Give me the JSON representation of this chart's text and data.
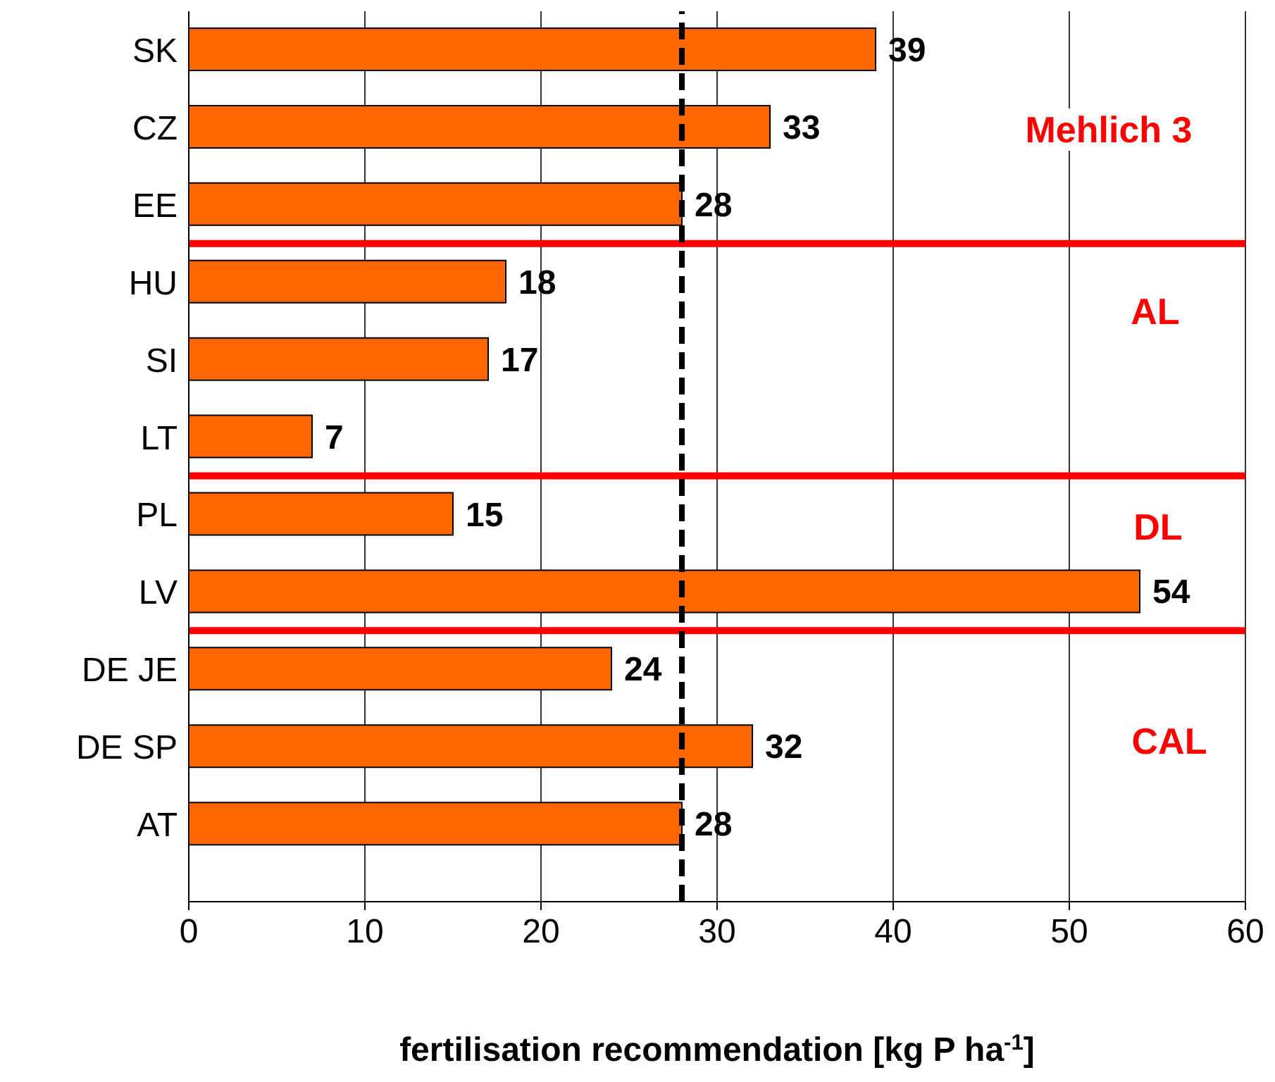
{
  "chart_data": {
    "type": "bar",
    "orientation": "horizontal",
    "categories": [
      "SK",
      "CZ",
      "EE",
      "HU",
      "SI",
      "LT",
      "PL",
      "LV",
      "DE JE",
      "DE SP",
      "AT"
    ],
    "values": [
      39,
      33,
      28,
      18,
      17,
      7,
      15,
      54,
      24,
      32,
      28
    ],
    "color": "#ff6600",
    "xlim": [
      0,
      60
    ],
    "xticks": [
      0,
      10,
      20,
      30,
      40,
      50,
      60
    ],
    "grid": "x",
    "data_labels": true,
    "xlabel": "fertilisation recommendation [kg P ha$^{-1}$]",
    "ref_lines": [
      {
        "axis": "x",
        "value": 28,
        "color": "#000000",
        "line_style": "dashed"
      }
    ],
    "annotations": [
      "Mehlich 3",
      "AL",
      "DL",
      "CAL"
    ]
  }
}
